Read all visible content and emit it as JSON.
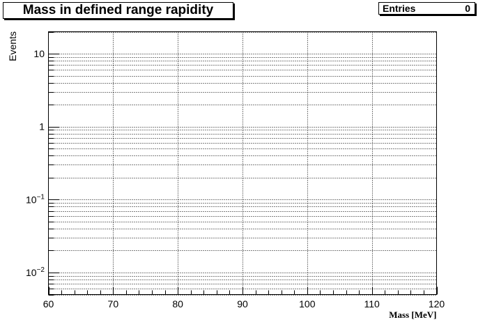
{
  "chart_data": {
    "type": "histogram",
    "title": "Mass in defined range rapidity",
    "stats": {
      "label": "Entries",
      "value": "0"
    },
    "xlabel": "Mass [MeV]",
    "ylabel": "Events",
    "xlim": [
      60,
      120
    ],
    "ylim": [
      0.005,
      20
    ],
    "yscale": "log",
    "x_ticks": [
      "60",
      "70",
      "80",
      "90",
      "100",
      "110",
      "120"
    ],
    "y_ticks": [
      {
        "value": 10,
        "base": "10",
        "exp": ""
      },
      {
        "value": 1,
        "base": "1",
        "exp": ""
      },
      {
        "value": 0.1,
        "base": "10",
        "exp": "−1"
      },
      {
        "value": 0.01,
        "base": "10",
        "exp": "−2"
      }
    ],
    "grid": true,
    "entries": 0,
    "values": []
  }
}
